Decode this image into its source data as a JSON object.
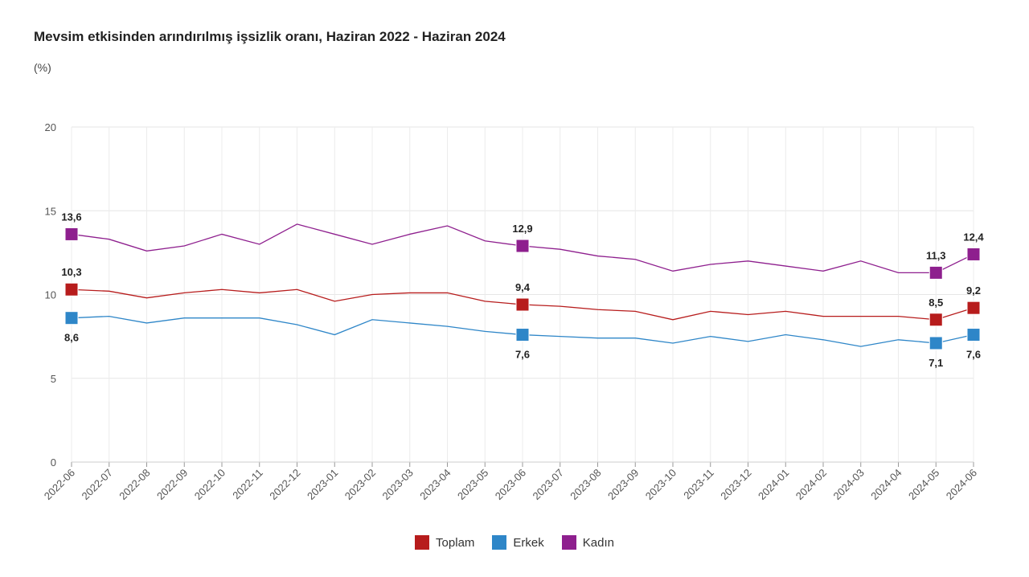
{
  "chart_data": {
    "type": "line",
    "title": "Mevsim etkisinden arındırılmış işsizlik oranı, Haziran 2022 - Haziran 2024",
    "ylabel": "(%)",
    "ylim": [
      0,
      20
    ],
    "yticks": [
      "0",
      "5",
      "10",
      "15",
      "20"
    ],
    "categories": [
      "2022-06",
      "2022-07",
      "2022-08",
      "2022-09",
      "2022-10",
      "2022-11",
      "2022-12",
      "2023-01",
      "2023-02",
      "2023-03",
      "2023-04",
      "2023-05",
      "2023-06",
      "2023-07",
      "2023-08",
      "2023-09",
      "2023-10",
      "2023-11",
      "2023-12",
      "2024-01",
      "2024-02",
      "2024-03",
      "2024-04",
      "2024-05",
      "2024-06"
    ],
    "series": [
      {
        "name": "Toplam",
        "color": "#b71c1c",
        "values": [
          10.3,
          10.2,
          9.8,
          10.1,
          10.3,
          10.1,
          10.3,
          9.6,
          10.0,
          10.1,
          10.1,
          9.6,
          9.4,
          9.3,
          9.1,
          9.0,
          8.5,
          9.0,
          8.8,
          9.0,
          8.7,
          8.7,
          8.7,
          8.5,
          9.2
        ],
        "labeled": [
          {
            "i": 0,
            "text": "10,3",
            "pos": "above"
          },
          {
            "i": 12,
            "text": "9,4",
            "pos": "above"
          },
          {
            "i": 23,
            "text": "8,5",
            "pos": "above"
          },
          {
            "i": 24,
            "text": "9,2",
            "pos": "above"
          }
        ]
      },
      {
        "name": "Erkek",
        "color": "#2e86c8",
        "values": [
          8.6,
          8.7,
          8.3,
          8.6,
          8.6,
          8.6,
          8.2,
          7.6,
          8.5,
          8.3,
          8.1,
          7.8,
          7.6,
          7.5,
          7.4,
          7.4,
          7.1,
          7.5,
          7.2,
          7.6,
          7.3,
          6.9,
          7.3,
          7.1,
          7.6
        ],
        "labeled": [
          {
            "i": 0,
            "text": "8,6",
            "pos": "below"
          },
          {
            "i": 12,
            "text": "7,6",
            "pos": "below"
          },
          {
            "i": 23,
            "text": "7,1",
            "pos": "below"
          },
          {
            "i": 24,
            "text": "7,6",
            "pos": "below"
          }
        ]
      },
      {
        "name": "Kadın",
        "color": "#8e1f8e",
        "values": [
          13.6,
          13.3,
          12.6,
          12.9,
          13.6,
          13.0,
          14.2,
          13.6,
          13.0,
          13.6,
          14.1,
          13.2,
          12.9,
          12.7,
          12.3,
          12.1,
          11.4,
          11.8,
          12.0,
          11.7,
          11.4,
          12.0,
          11.3,
          11.3,
          12.4
        ],
        "labeled": [
          {
            "i": 0,
            "text": "13,6",
            "pos": "above"
          },
          {
            "i": 12,
            "text": "12,9",
            "pos": "above"
          },
          {
            "i": 23,
            "text": "11,3",
            "pos": "above"
          },
          {
            "i": 24,
            "text": "12,4",
            "pos": "above"
          }
        ]
      }
    ],
    "legend": [
      "Toplam",
      "Erkek",
      "Kadın"
    ],
    "grid": true
  }
}
